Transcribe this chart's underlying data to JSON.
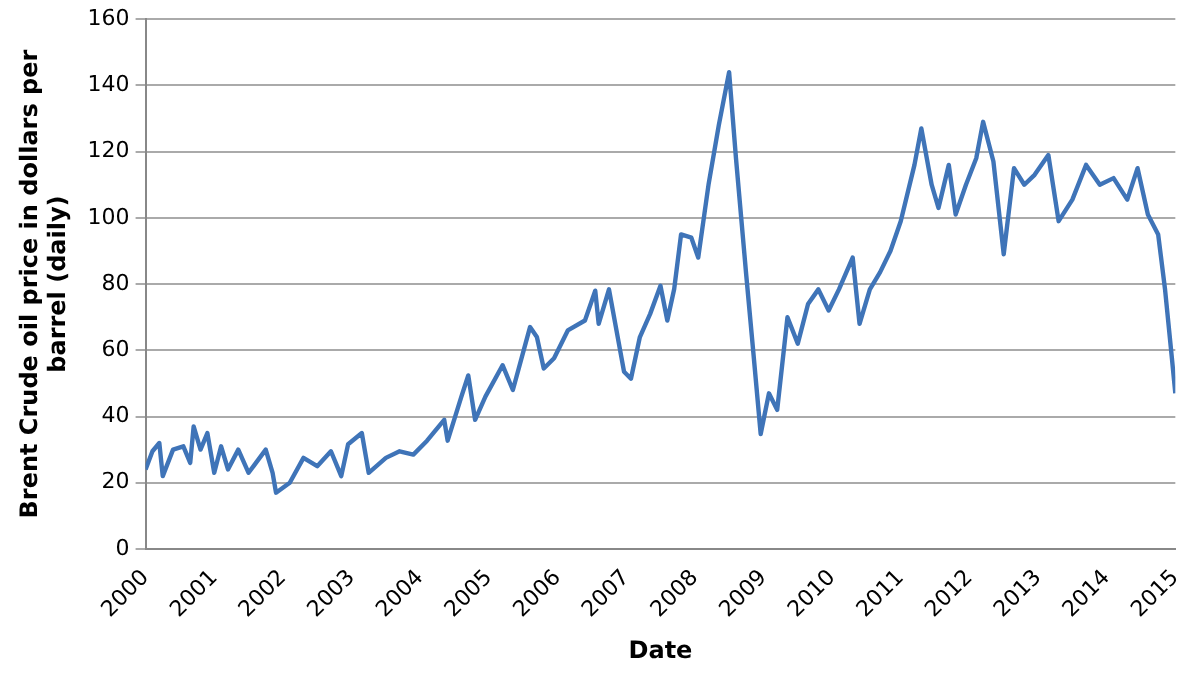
{
  "chart_data": {
    "type": "line",
    "xlabel": "Date",
    "ylabel": "Brent Crude oil price in dollars per barrel (daily)",
    "x": [
      2000.0,
      2000.1,
      2000.2,
      2000.25,
      2000.4,
      2000.55,
      2000.65,
      2000.7,
      2000.8,
      2000.9,
      2001.0,
      2001.1,
      2001.2,
      2001.35,
      2001.5,
      2001.75,
      2001.85,
      2001.9,
      2002.1,
      2002.3,
      2002.5,
      2002.7,
      2002.85,
      2002.95,
      2003.15,
      2003.25,
      2003.5,
      2003.7,
      2003.9,
      2004.1,
      2004.35,
      2004.4,
      2004.6,
      2004.7,
      2004.8,
      2004.95,
      2005.2,
      2005.35,
      2005.6,
      2005.7,
      2005.8,
      2005.95,
      2006.15,
      2006.4,
      2006.55,
      2006.6,
      2006.75,
      2006.97,
      2007.07,
      2007.2,
      2007.35,
      2007.5,
      2007.6,
      2007.7,
      2007.8,
      2007.95,
      2008.05,
      2008.2,
      2008.35,
      2008.5,
      2008.6,
      2008.75,
      2008.85,
      2008.96,
      2009.08,
      2009.2,
      2009.35,
      2009.5,
      2009.65,
      2009.8,
      2009.95,
      2010.1,
      2010.3,
      2010.4,
      2010.55,
      2010.7,
      2010.85,
      2011.0,
      2011.2,
      2011.3,
      2011.45,
      2011.55,
      2011.7,
      2011.8,
      2011.95,
      2012.1,
      2012.2,
      2012.35,
      2012.5,
      2012.65,
      2012.8,
      2012.95,
      2013.15,
      2013.3,
      2013.5,
      2013.7,
      2013.9,
      2014.1,
      2014.3,
      2014.45,
      2014.6,
      2014.75,
      2014.85,
      2014.95,
      2015.0
    ],
    "series": [
      {
        "color": "#3f74b8",
        "values": [
          24,
          29.5,
          32,
          22,
          30,
          31,
          26,
          37,
          30,
          35,
          23,
          31,
          24,
          30,
          23,
          30,
          23,
          17,
          20,
          27.5,
          25,
          29.5,
          22,
          31.6,
          35,
          23,
          27.5,
          29.5,
          28.5,
          32.7,
          39,
          32.7,
          46,
          52.4,
          39,
          46,
          55.5,
          48,
          67,
          64,
          54.5,
          57.6,
          66,
          69,
          78,
          68,
          78.4,
          53.5,
          51.4,
          64,
          71,
          79.5,
          69,
          78.5,
          95,
          94,
          88,
          110,
          128,
          144,
          118,
          82.6,
          60,
          34.7,
          47,
          42,
          70,
          62,
          74,
          78.4,
          72,
          78.4,
          88,
          68,
          78.4,
          83.6,
          90,
          99,
          116,
          127,
          110,
          103,
          116,
          101,
          110,
          118,
          129,
          117,
          89,
          115,
          110,
          113,
          119,
          99,
          105.5,
          116,
          110,
          112,
          105.5,
          115,
          101,
          95,
          78.4,
          57.6,
          47
        ]
      }
    ],
    "xlim": [
      2000,
      2015
    ],
    "xticks": [
      2000,
      2001,
      2002,
      2003,
      2004,
      2005,
      2006,
      2007,
      2008,
      2009,
      2010,
      2011,
      2012,
      2013,
      2014,
      2015
    ],
    "ylim": [
      0,
      160
    ],
    "yticks": [
      0,
      20,
      40,
      60,
      80,
      100,
      120,
      140,
      160
    ],
    "grid": "y",
    "legend": false,
    "marker": "none",
    "line_style": "solid"
  }
}
